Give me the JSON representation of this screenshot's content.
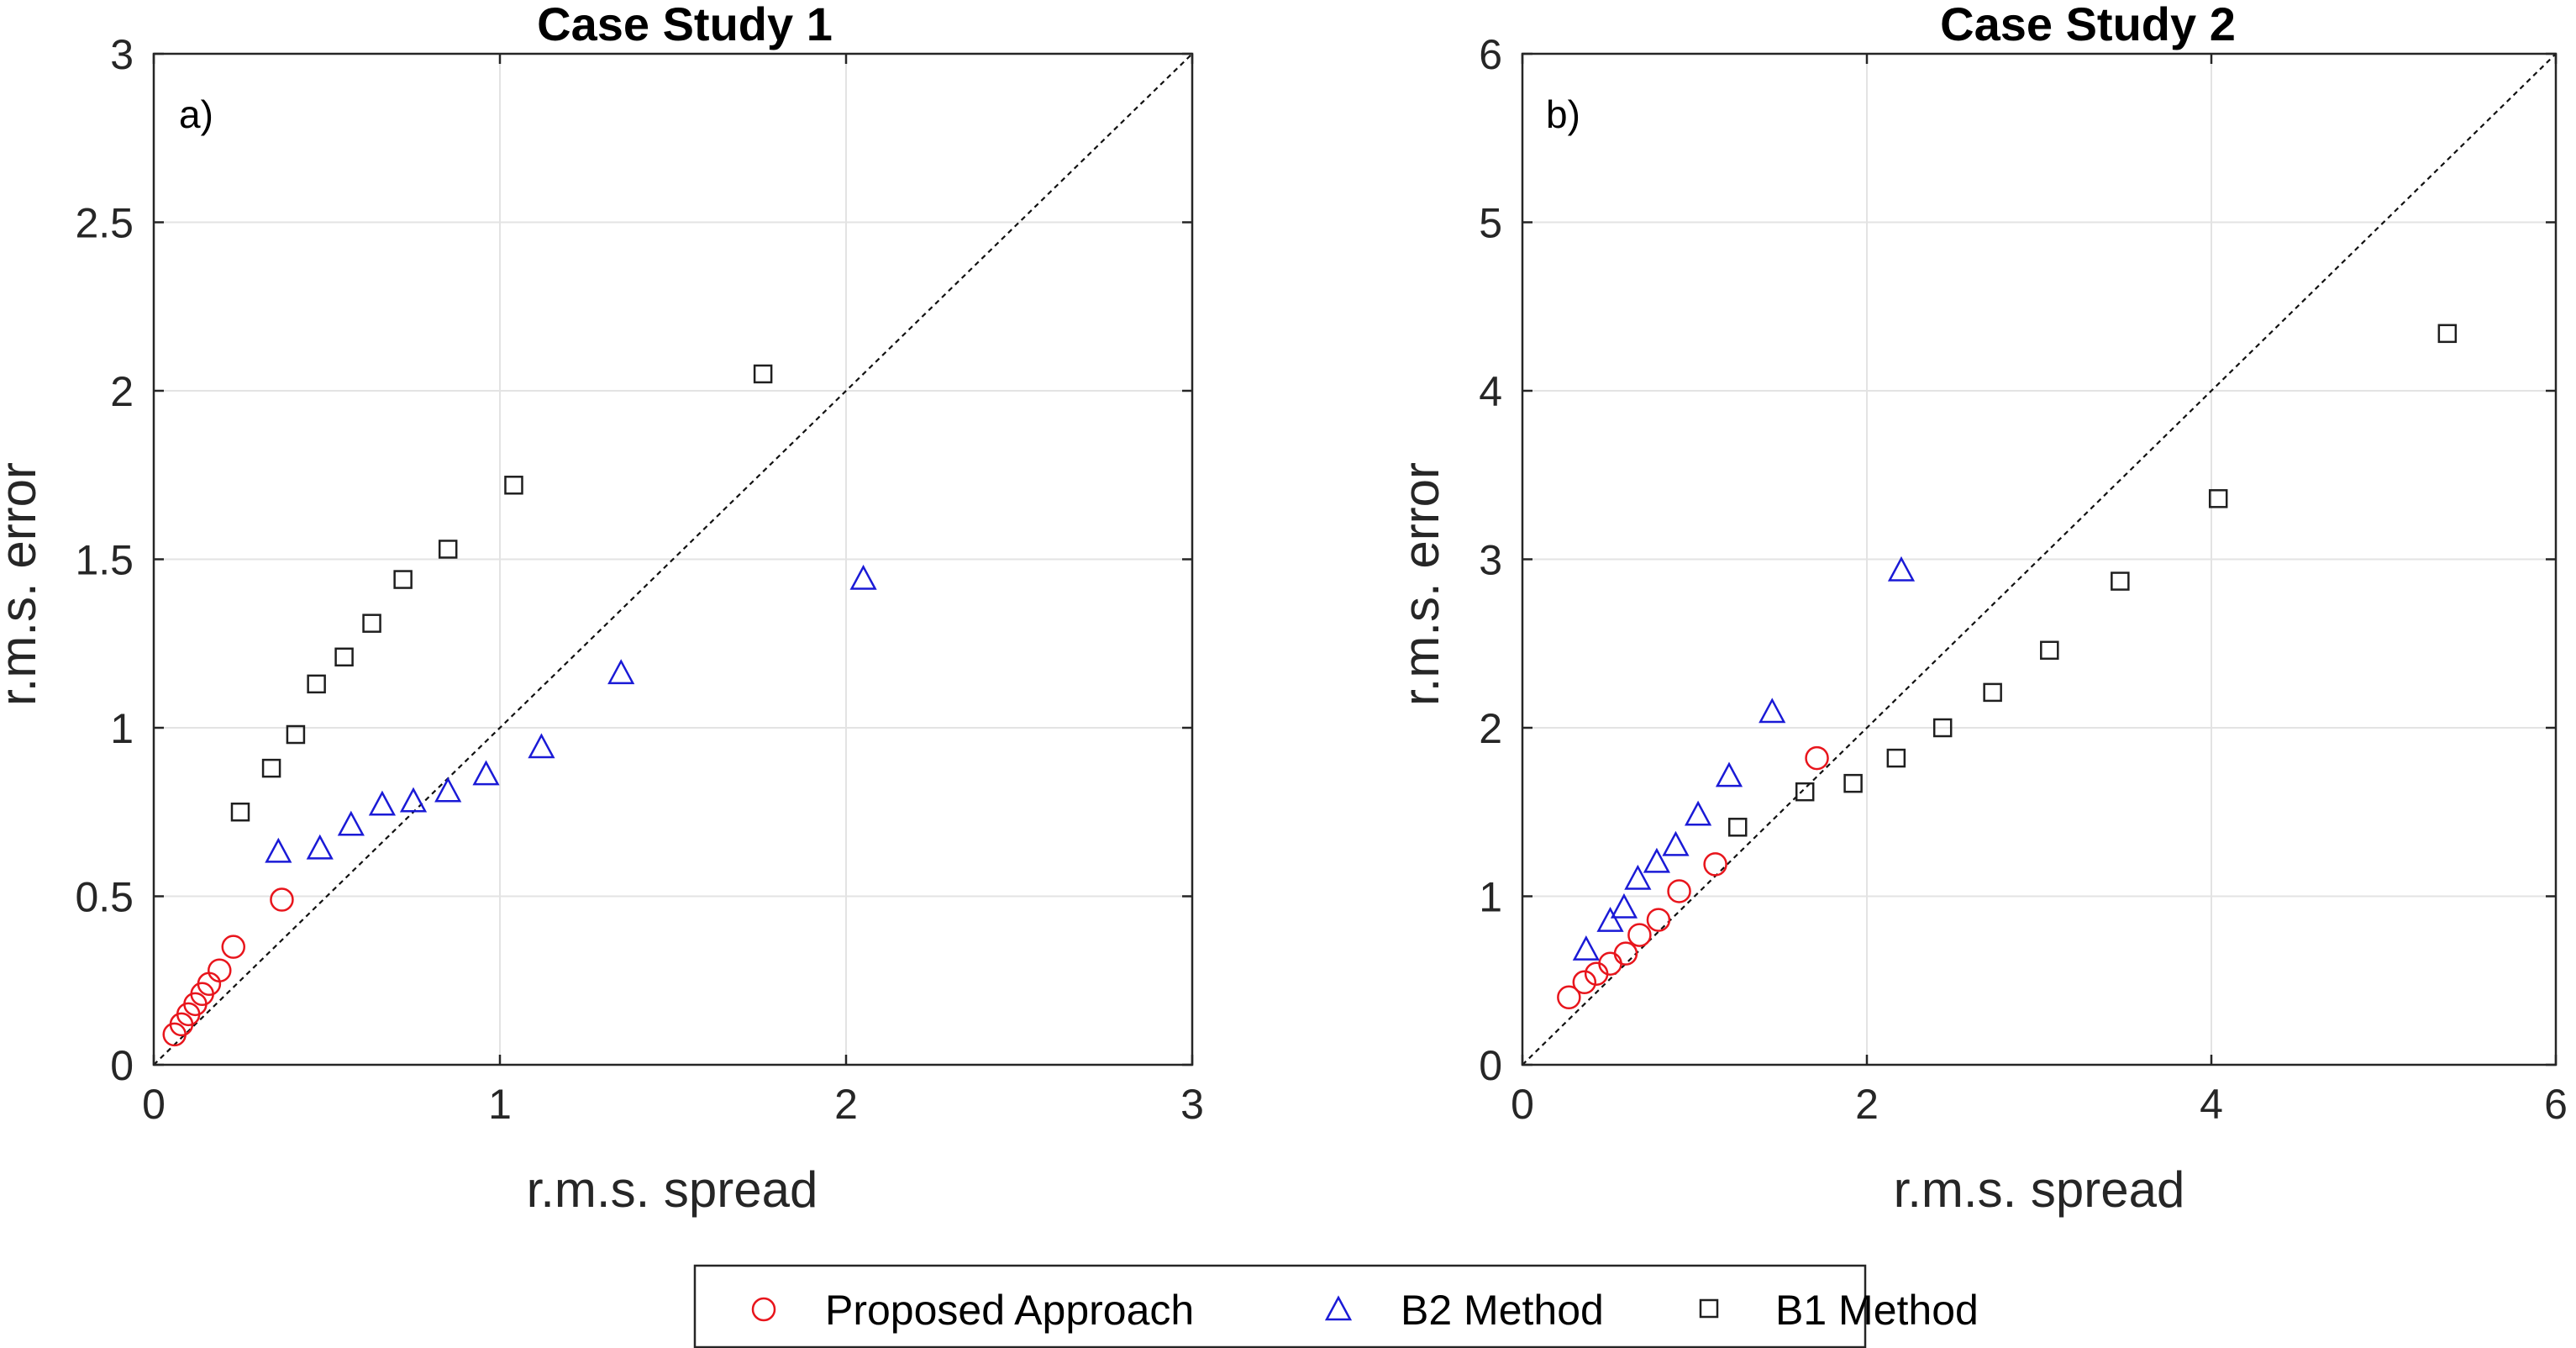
{
  "chart_data": [
    {
      "type": "scatter",
      "title": "Case Study 1",
      "panel_label": "a)",
      "xlabel": "r.m.s. spread",
      "ylabel": "r.m.s. error",
      "xlim": [
        0,
        3
      ],
      "ylim": [
        0,
        3
      ],
      "xticks": [
        0,
        1,
        2,
        3
      ],
      "yticks": [
        0,
        0.5,
        1,
        1.5,
        2,
        2.5,
        3
      ],
      "xticklabels": [
        "0",
        "1",
        "2",
        "3"
      ],
      "yticklabels": [
        "0",
        "0.5",
        "1",
        "1.5",
        "2",
        "2.5",
        "3"
      ],
      "grid": true,
      "reference_line": "y = x (dashed)",
      "series": [
        {
          "name": "Proposed Approach",
          "marker": "circle",
          "color": "#e8151c",
          "points": [
            [
              0.06,
              0.09
            ],
            [
              0.08,
              0.12
            ],
            [
              0.1,
              0.15
            ],
            [
              0.12,
              0.18
            ],
            [
              0.14,
              0.21
            ],
            [
              0.16,
              0.24
            ],
            [
              0.19,
              0.28
            ],
            [
              0.23,
              0.35
            ],
            [
              0.37,
              0.49
            ]
          ]
        },
        {
          "name": "B2 Method",
          "marker": "triangle",
          "color": "#1a1ad6",
          "points": [
            [
              0.36,
              0.63
            ],
            [
              0.48,
              0.64
            ],
            [
              0.57,
              0.71
            ],
            [
              0.66,
              0.77
            ],
            [
              0.75,
              0.78
            ],
            [
              0.85,
              0.81
            ],
            [
              0.96,
              0.86
            ],
            [
              1.12,
              0.94
            ],
            [
              1.35,
              1.16
            ],
            [
              2.05,
              1.44
            ]
          ]
        },
        {
          "name": "B1 Method",
          "marker": "square",
          "color": "#1f1f1f",
          "points": [
            [
              0.25,
              0.75
            ],
            [
              0.34,
              0.88
            ],
            [
              0.41,
              0.98
            ],
            [
              0.47,
              1.13
            ],
            [
              0.55,
              1.21
            ],
            [
              0.63,
              1.31
            ],
            [
              0.72,
              1.44
            ],
            [
              0.85,
              1.53
            ],
            [
              1.04,
              1.72
            ],
            [
              1.76,
              2.05
            ]
          ]
        }
      ]
    },
    {
      "type": "scatter",
      "title": "Case Study 2",
      "panel_label": "b)",
      "xlabel": "r.m.s. spread",
      "ylabel": "r.m.s. error",
      "xlim": [
        0,
        6
      ],
      "ylim": [
        0,
        6
      ],
      "xticks": [
        0,
        2,
        4,
        6
      ],
      "yticks": [
        0,
        1,
        2,
        3,
        4,
        5,
        6
      ],
      "xticklabels": [
        "0",
        "2",
        "4",
        "6"
      ],
      "yticklabels": [
        "0",
        "1",
        "2",
        "3",
        "4",
        "5",
        "6"
      ],
      "grid": true,
      "reference_line": "y = x (dashed)",
      "series": [
        {
          "name": "Proposed Approach",
          "marker": "circle",
          "color": "#e8151c",
          "points": [
            [
              0.27,
              0.4
            ],
            [
              0.36,
              0.49
            ],
            [
              0.43,
              0.54
            ],
            [
              0.51,
              0.6
            ],
            [
              0.6,
              0.66
            ],
            [
              0.68,
              0.77
            ],
            [
              0.79,
              0.86
            ],
            [
              0.91,
              1.03
            ],
            [
              1.12,
              1.19
            ],
            [
              1.71,
              1.82
            ]
          ]
        },
        {
          "name": "B2 Method",
          "marker": "triangle",
          "color": "#1a1ad6",
          "points": [
            [
              0.37,
              0.68
            ],
            [
              0.51,
              0.85
            ],
            [
              0.59,
              0.93
            ],
            [
              0.67,
              1.1
            ],
            [
              0.78,
              1.2
            ],
            [
              0.89,
              1.3
            ],
            [
              1.02,
              1.48
            ],
            [
              1.2,
              1.71
            ],
            [
              1.45,
              2.09
            ],
            [
              2.2,
              2.93
            ]
          ]
        },
        {
          "name": "B1 Method",
          "marker": "square",
          "color": "#1f1f1f",
          "points": [
            [
              1.25,
              1.41
            ],
            [
              1.64,
              1.62
            ],
            [
              1.92,
              1.67
            ],
            [
              2.17,
              1.82
            ],
            [
              2.44,
              2.0
            ],
            [
              2.73,
              2.21
            ],
            [
              3.06,
              2.46
            ],
            [
              3.47,
              2.87
            ],
            [
              4.04,
              3.36
            ],
            [
              5.37,
              4.34
            ]
          ]
        }
      ]
    }
  ],
  "legend": {
    "position": "bottom-center",
    "entries": [
      "Proposed Approach",
      "B2 Method",
      "B1 Method"
    ]
  }
}
